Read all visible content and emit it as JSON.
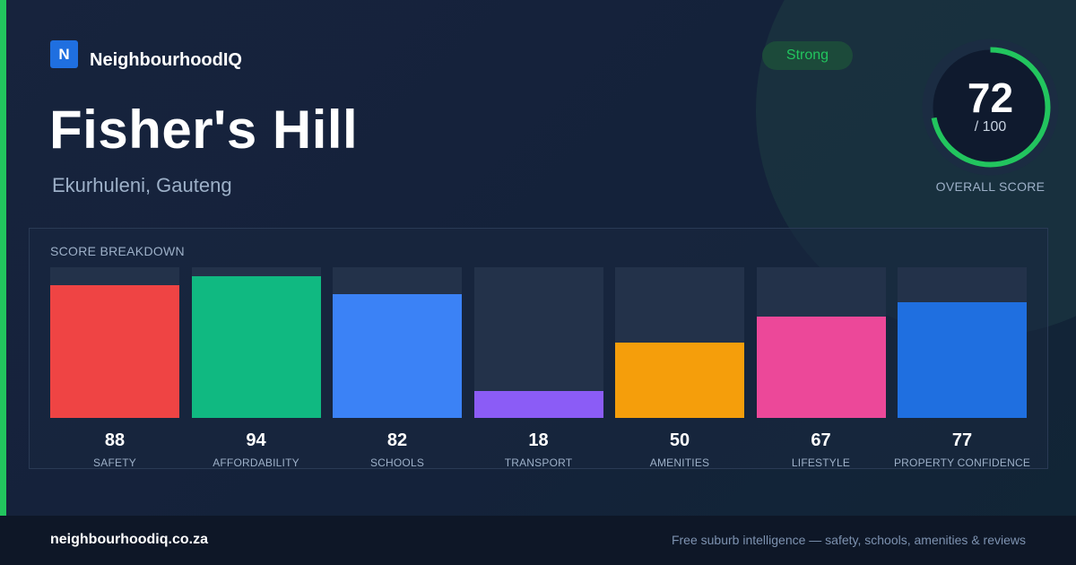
{
  "brand": {
    "logo_letter": "N",
    "name": "NeighbourhoodIQ"
  },
  "suburb": {
    "name": "Fisher's Hill",
    "region": "Ekurhuleni, Gauteng"
  },
  "badge": {
    "label": "Strong",
    "color": "#22c55e"
  },
  "overall": {
    "score": "72",
    "max_label": "/ 100",
    "label": "OVERALL SCORE",
    "fraction": 0.72,
    "ring_color": "#22c55e"
  },
  "breakdown": {
    "title": "SCORE BREAKDOWN",
    "max": 100,
    "items": [
      {
        "label": "SAFETY",
        "value": 88,
        "color": "#ef4444"
      },
      {
        "label": "AFFORDABILITY",
        "value": 94,
        "color": "#10b981"
      },
      {
        "label": "SCHOOLS",
        "value": 82,
        "color": "#3b82f6"
      },
      {
        "label": "TRANSPORT",
        "value": 18,
        "color": "#8b5cf6"
      },
      {
        "label": "AMENITIES",
        "value": 50,
        "color": "#f59e0b"
      },
      {
        "label": "LIFESTYLE",
        "value": 67,
        "color": "#ec4899"
      },
      {
        "label": "PROPERTY CONFIDENCE",
        "value": 77,
        "color": "#1f6fe0"
      }
    ]
  },
  "footer": {
    "domain": "neighbourhoodiq.co.za",
    "tagline": "Free suburb intelligence — safety, schools, amenities & reviews"
  }
}
